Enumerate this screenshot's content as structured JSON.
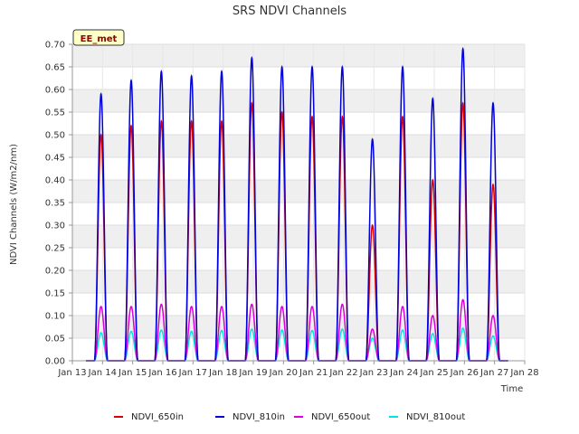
{
  "chart_data": {
    "type": "line",
    "title": "SRS NDVI Channels",
    "xlabel": "Time",
    "ylabel": "NDVI Channels (W/m2/nm)",
    "badge": "EE_met",
    "xlim": [
      13,
      28
    ],
    "ylim": [
      0,
      0.7
    ],
    "x_ticks": [
      13,
      14,
      15,
      16,
      17,
      18,
      19,
      20,
      21,
      22,
      23,
      24,
      25,
      26,
      27,
      28
    ],
    "x_tick_labels": [
      "Jan 13",
      "Jan 14",
      "Jan 15",
      "Jan 16",
      "Jan 17",
      "Jan 18",
      "Jan 19",
      "Jan 20",
      "Jan 21",
      "Jan 22",
      "Jan 23",
      "Jan 24",
      "Jan 25",
      "Jan 26",
      "Jan 27",
      "Jan 28"
    ],
    "y_ticks": [
      0,
      0.05,
      0.1,
      0.15,
      0.2,
      0.25,
      0.3,
      0.35,
      0.4,
      0.45,
      0.5,
      0.55,
      0.6,
      0.65,
      0.7
    ],
    "y_tick_labels": [
      "0.00",
      "0.05",
      "0.10",
      "0.15",
      "0.20",
      "0.25",
      "0.30",
      "0.35",
      "0.40",
      "0.45",
      "0.50",
      "0.55",
      "0.60",
      "0.65",
      "0.70"
    ],
    "grid": true,
    "legend_position": "bottom",
    "day_peaks": {
      "days": [
        13.95,
        14.95,
        15.95,
        16.95,
        17.95,
        18.95,
        19.95,
        20.95,
        21.95,
        22.95,
        23.95,
        24.95,
        25.95,
        26.95
      ],
      "width_days": 0.22
    },
    "series": [
      {
        "name": "NDVI_650in",
        "color": "#dd0000",
        "peaks": [
          0.5,
          0.52,
          0.53,
          0.53,
          0.53,
          0.57,
          0.55,
          0.54,
          0.54,
          0.3,
          0.54,
          0.4,
          0.57,
          0.39
        ]
      },
      {
        "name": "NDVI_810in",
        "color": "#0000dd",
        "peaks": [
          0.59,
          0.62,
          0.64,
          0.63,
          0.64,
          0.67,
          0.65,
          0.65,
          0.65,
          0.49,
          0.65,
          0.58,
          0.69,
          0.57
        ]
      },
      {
        "name": "NDVI_650out",
        "color": "#dd00dd",
        "peaks": [
          0.12,
          0.12,
          0.125,
          0.12,
          0.12,
          0.125,
          0.12,
          0.12,
          0.125,
          0.07,
          0.12,
          0.1,
          0.135,
          0.1
        ]
      },
      {
        "name": "NDVI_810out",
        "color": "#00e5e5",
        "peaks": [
          0.062,
          0.065,
          0.068,
          0.065,
          0.067,
          0.07,
          0.068,
          0.067,
          0.07,
          0.05,
          0.068,
          0.06,
          0.072,
          0.055
        ]
      }
    ]
  }
}
